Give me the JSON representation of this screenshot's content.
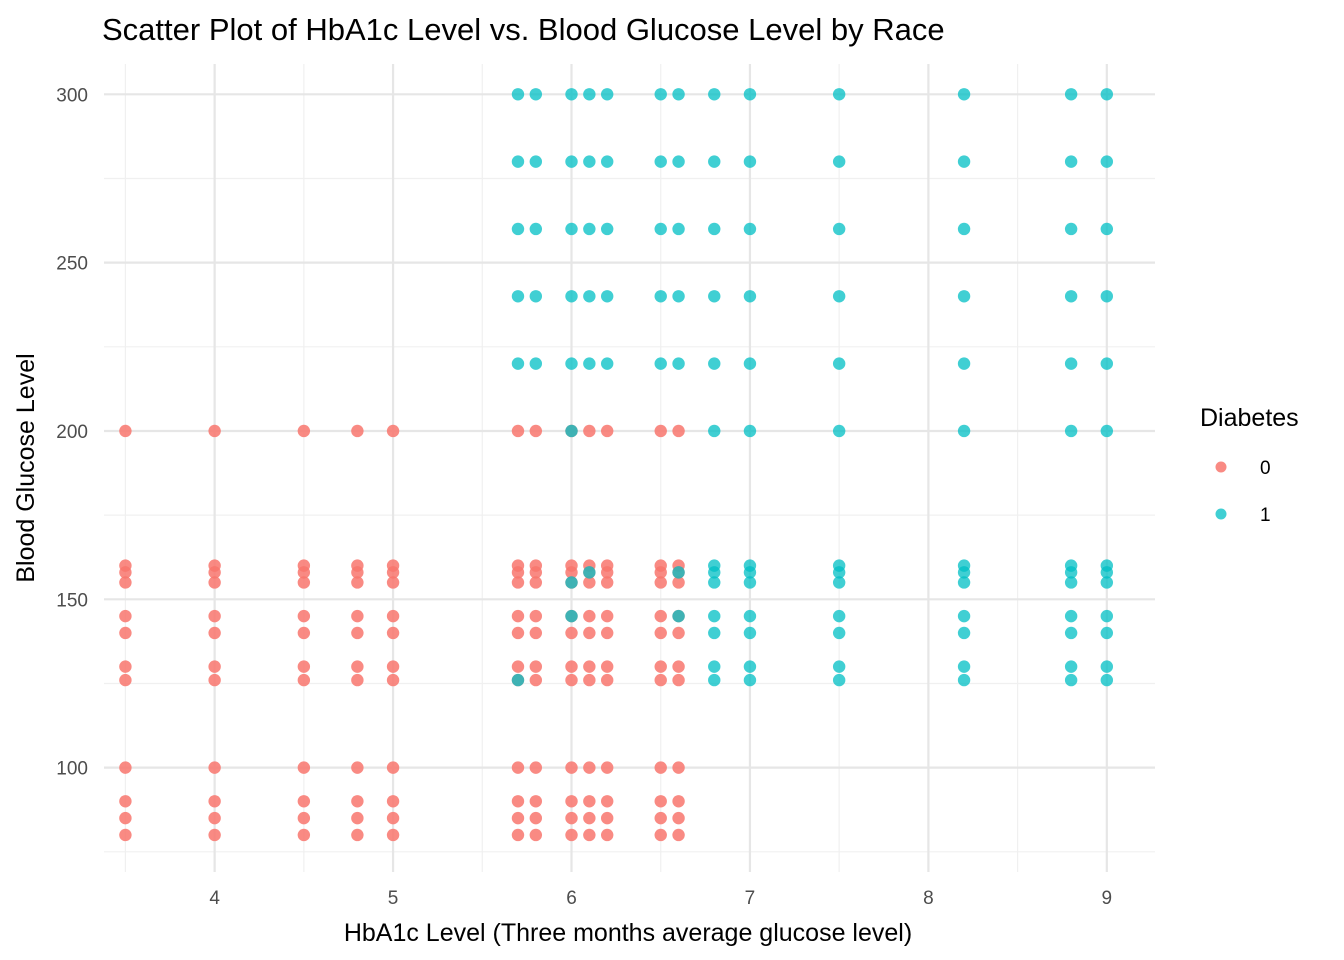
{
  "chart_data": {
    "type": "scatter",
    "title": "Scatter Plot of HbA1c Level vs. Blood Glucose Level by Race",
    "xlabel": "HbA1c Level (Three months average glucose level)",
    "ylabel": "Blood Glucose Level",
    "xlim": [
      3.38,
      9.27
    ],
    "ylim": [
      69,
      309
    ],
    "x_ticks": [
      4,
      5,
      6,
      7,
      8,
      9
    ],
    "y_ticks": [
      100,
      150,
      200,
      250,
      300
    ],
    "grid": true,
    "legend": {
      "title": "Diabetes",
      "position": "right"
    },
    "series": [
      {
        "name": "0",
        "color": "#F8766D",
        "x_values": [
          3.5,
          4.0,
          4.5,
          4.8,
          5.0,
          5.7,
          5.8,
          6.0,
          6.1,
          6.2,
          6.5,
          6.6
        ],
        "y_values": [
          80,
          85,
          90,
          100,
          126,
          130,
          140,
          145,
          155,
          158,
          160,
          200
        ]
      },
      {
        "name": "1",
        "color": "#00BFC4",
        "points": [
          {
            "x": 5.7,
            "y": 126
          },
          {
            "x": 6.6,
            "y": 145
          },
          {
            "x": 6.6,
            "y": 158
          },
          {
            "x": 6.0,
            "y": 145
          },
          {
            "x": 6.0,
            "y": 155
          },
          {
            "x": 6.0,
            "y": 200
          },
          {
            "x": 6.1,
            "y": 158
          },
          {
            "x": 6.8,
            "y": 126
          },
          {
            "x": 6.8,
            "y": 130
          },
          {
            "x": 6.8,
            "y": 140
          },
          {
            "x": 6.8,
            "y": 145
          },
          {
            "x": 6.8,
            "y": 155
          },
          {
            "x": 6.8,
            "y": 158
          },
          {
            "x": 6.8,
            "y": 160
          },
          {
            "x": 6.8,
            "y": 200
          },
          {
            "x": 6.8,
            "y": 220
          },
          {
            "x": 6.8,
            "y": 240
          },
          {
            "x": 6.8,
            "y": 260
          },
          {
            "x": 6.8,
            "y": 280
          },
          {
            "x": 6.8,
            "y": 300
          },
          {
            "x": 7.0,
            "y": 126
          },
          {
            "x": 7.0,
            "y": 130
          },
          {
            "x": 7.0,
            "y": 140
          },
          {
            "x": 7.0,
            "y": 145
          },
          {
            "x": 7.0,
            "y": 155
          },
          {
            "x": 7.0,
            "y": 158
          },
          {
            "x": 7.0,
            "y": 160
          },
          {
            "x": 7.0,
            "y": 200
          },
          {
            "x": 7.0,
            "y": 220
          },
          {
            "x": 7.0,
            "y": 240
          },
          {
            "x": 7.0,
            "y": 260
          },
          {
            "x": 7.0,
            "y": 280
          },
          {
            "x": 7.0,
            "y": 300
          },
          {
            "x": 7.5,
            "y": 126
          },
          {
            "x": 7.5,
            "y": 130
          },
          {
            "x": 7.5,
            "y": 140
          },
          {
            "x": 7.5,
            "y": 145
          },
          {
            "x": 7.5,
            "y": 155
          },
          {
            "x": 7.5,
            "y": 158
          },
          {
            "x": 7.5,
            "y": 160
          },
          {
            "x": 7.5,
            "y": 200
          },
          {
            "x": 7.5,
            "y": 220
          },
          {
            "x": 7.5,
            "y": 240
          },
          {
            "x": 7.5,
            "y": 260
          },
          {
            "x": 7.5,
            "y": 280
          },
          {
            "x": 7.5,
            "y": 300
          },
          {
            "x": 8.2,
            "y": 126
          },
          {
            "x": 8.2,
            "y": 130
          },
          {
            "x": 8.2,
            "y": 140
          },
          {
            "x": 8.2,
            "y": 145
          },
          {
            "x": 8.2,
            "y": 155
          },
          {
            "x": 8.2,
            "y": 158
          },
          {
            "x": 8.2,
            "y": 160
          },
          {
            "x": 8.2,
            "y": 200
          },
          {
            "x": 8.2,
            "y": 220
          },
          {
            "x": 8.2,
            "y": 240
          },
          {
            "x": 8.2,
            "y": 260
          },
          {
            "x": 8.2,
            "y": 280
          },
          {
            "x": 8.2,
            "y": 300
          },
          {
            "x": 8.8,
            "y": 126
          },
          {
            "x": 8.8,
            "y": 130
          },
          {
            "x": 8.8,
            "y": 140
          },
          {
            "x": 8.8,
            "y": 145
          },
          {
            "x": 8.8,
            "y": 155
          },
          {
            "x": 8.8,
            "y": 158
          },
          {
            "x": 8.8,
            "y": 160
          },
          {
            "x": 8.8,
            "y": 200
          },
          {
            "x": 8.8,
            "y": 220
          },
          {
            "x": 8.8,
            "y": 240
          },
          {
            "x": 8.8,
            "y": 260
          },
          {
            "x": 8.8,
            "y": 280
          },
          {
            "x": 8.8,
            "y": 300
          },
          {
            "x": 9.0,
            "y": 126
          },
          {
            "x": 9.0,
            "y": 130
          },
          {
            "x": 9.0,
            "y": 140
          },
          {
            "x": 9.0,
            "y": 145
          },
          {
            "x": 9.0,
            "y": 155
          },
          {
            "x": 9.0,
            "y": 158
          },
          {
            "x": 9.0,
            "y": 160
          },
          {
            "x": 9.0,
            "y": 200
          },
          {
            "x": 9.0,
            "y": 220
          },
          {
            "x": 9.0,
            "y": 240
          },
          {
            "x": 9.0,
            "y": 260
          },
          {
            "x": 9.0,
            "y": 280
          },
          {
            "x": 9.0,
            "y": 300
          },
          {
            "x": 5.7,
            "y": 220
          },
          {
            "x": 5.7,
            "y": 240
          },
          {
            "x": 5.7,
            "y": 260
          },
          {
            "x": 5.7,
            "y": 280
          },
          {
            "x": 5.7,
            "y": 300
          },
          {
            "x": 5.8,
            "y": 220
          },
          {
            "x": 5.8,
            "y": 240
          },
          {
            "x": 5.8,
            "y": 260
          },
          {
            "x": 5.8,
            "y": 280
          },
          {
            "x": 5.8,
            "y": 300
          },
          {
            "x": 6.0,
            "y": 220
          },
          {
            "x": 6.0,
            "y": 240
          },
          {
            "x": 6.0,
            "y": 260
          },
          {
            "x": 6.0,
            "y": 280
          },
          {
            "x": 6.0,
            "y": 300
          },
          {
            "x": 6.1,
            "y": 220
          },
          {
            "x": 6.1,
            "y": 240
          },
          {
            "x": 6.1,
            "y": 260
          },
          {
            "x": 6.1,
            "y": 280
          },
          {
            "x": 6.1,
            "y": 300
          },
          {
            "x": 6.2,
            "y": 220
          },
          {
            "x": 6.2,
            "y": 240
          },
          {
            "x": 6.2,
            "y": 260
          },
          {
            "x": 6.2,
            "y": 280
          },
          {
            "x": 6.2,
            "y": 300
          },
          {
            "x": 6.5,
            "y": 220
          },
          {
            "x": 6.5,
            "y": 240
          },
          {
            "x": 6.5,
            "y": 260
          },
          {
            "x": 6.5,
            "y": 280
          },
          {
            "x": 6.5,
            "y": 300
          },
          {
            "x": 6.6,
            "y": 220
          },
          {
            "x": 6.6,
            "y": 240
          },
          {
            "x": 6.6,
            "y": 260
          },
          {
            "x": 6.6,
            "y": 280
          },
          {
            "x": 6.6,
            "y": 300
          }
        ]
      }
    ]
  }
}
